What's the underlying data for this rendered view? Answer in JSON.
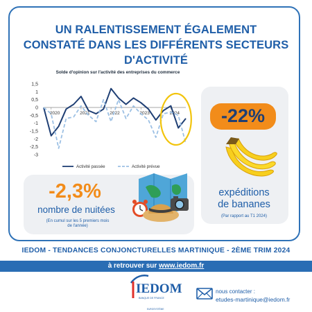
{
  "headline": {
    "line1": "UN RALENTISSEMENT ÉGALEMENT",
    "line2": "CONSTATÉ DANS LES DIFFÉRENTS SECTEURS",
    "line3": "D'ACTIVITÉ"
  },
  "chart_data": {
    "type": "line",
    "title": "Solde d'opinion sur l'activité des entreprises du commerce",
    "xlabel": "",
    "ylabel": "",
    "ylim": [
      -3,
      1.5
    ],
    "y_ticks": [
      "1,5",
      "1",
      "0,5",
      "0",
      "-0,5",
      "-1",
      "-1,5",
      "-2",
      "-2,5",
      "-3"
    ],
    "x_tick_labels": [
      "2020",
      "2021",
      "2022",
      "2023",
      "2024"
    ],
    "x": [
      "2019T4",
      "2020T1",
      "2020T2",
      "2020T3",
      "2020T4",
      "2021T1",
      "2021T2",
      "2021T3",
      "2021T4",
      "2022T1",
      "2022T2",
      "2022T3",
      "2022T4",
      "2023T1",
      "2023T2",
      "2023T3",
      "2023T4",
      "2024T1",
      "2024T2",
      "2024T3"
    ],
    "series": [
      {
        "name": "Activité passée",
        "color": "#1f3f74",
        "style": "solid",
        "values": [
          0.0,
          -1.8,
          -1.2,
          -0.1,
          0.2,
          0.7,
          -0.2,
          -0.4,
          -0.1,
          1.2,
          0.6,
          0.2,
          0.6,
          0.3,
          -0.1,
          -0.8,
          -0.2,
          0.1,
          -1.3,
          -0.7
        ]
      },
      {
        "name": "Activité prévue",
        "color": "#9cc0e4",
        "style": "dashed",
        "values": [
          0.0,
          -0.4,
          -2.6,
          -0.7,
          -0.6,
          0.1,
          -0.5,
          -0.9,
          0.5,
          -0.9,
          0.5,
          -0.7,
          0.1,
          -0.4,
          -0.8,
          -1.9,
          -0.4,
          -0.3,
          -0.5,
          -2.3
        ]
      }
    ],
    "legend_position": "bottom",
    "highlight": "2024"
  },
  "nuitees": {
    "value": "-2,3%",
    "label": "nombre de nuitées",
    "note_line1": "(En cumul sur les 5 premiers mois",
    "note_line2": "de l'année)"
  },
  "bananes": {
    "value": "-22%",
    "label_line1": "expéditions",
    "label_line2": "de bananes",
    "note": "(Par rapport au T1 2024)"
  },
  "band": {
    "title": "IEDOM - TENDANCES CONJONCTURELLES MARTINIQUE - 2ÈME TRIM 2024",
    "cta_prefix": "à retrouver sur ",
    "cta_url": "www.iedom.fr"
  },
  "logo": {
    "name": "IEDOM",
    "tagline": "BANQUE DE FRANCE",
    "sub": "EUROSYSTÈME"
  },
  "contact": {
    "label": "nous contacter :",
    "email": "etudes-martinique@iedom.fr"
  },
  "colors": {
    "brand_blue": "#1f5ea8",
    "accent_orange": "#f28c1a",
    "highlight_yellow": "#f2c40c",
    "panel_gray": "#eef0f3"
  }
}
